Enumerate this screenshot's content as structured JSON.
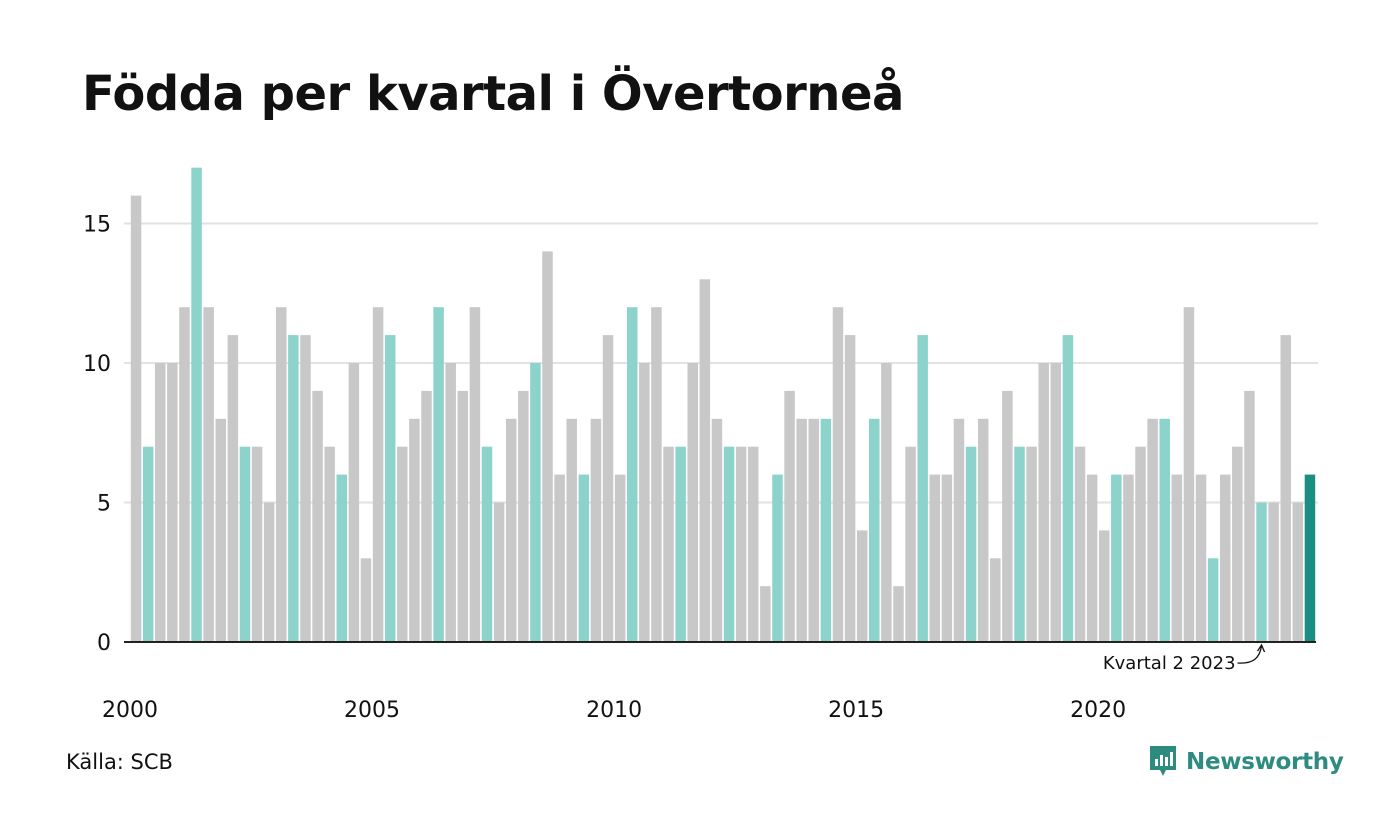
{
  "title": "Födda per kvartal i Övertorneå",
  "source": "Källa: SCB",
  "brand": {
    "name": "Newsworthy",
    "icon": "bar-chart-speech-bubble-icon"
  },
  "colors": {
    "bar_default": "#c8c8c8",
    "bar_same_quarter": "#8cd3cc",
    "bar_latest": "#1a8f81",
    "grid": "#e2e2e2",
    "axis": "#222222",
    "brand": "#2d8c7f"
  },
  "chart_data": {
    "type": "bar",
    "title": "Födda per kvartal i Övertorneå",
    "xlabel": "",
    "ylabel": "",
    "ylim": [
      0,
      17
    ],
    "yticks": [
      0,
      5,
      10,
      15
    ],
    "xtick_labels": [
      "2000",
      "2005",
      "2010",
      "2015",
      "2020"
    ],
    "grid": true,
    "highlight": "Kvartal 2 of each year highlighted; latest quarter emphasized",
    "annotation": {
      "text": "Kvartal 2 2023",
      "target_index": 93
    },
    "categories": [
      "2000 K1",
      "2000 K2",
      "2000 K3",
      "2000 K4",
      "2001 K1",
      "2001 K2",
      "2001 K3",
      "2001 K4",
      "2002 K1",
      "2002 K2",
      "2002 K3",
      "2002 K4",
      "2003 K1",
      "2003 K2",
      "2003 K3",
      "2003 K4",
      "2004 K1",
      "2004 K2",
      "2004 K3",
      "2004 K4",
      "2005 K1",
      "2005 K2",
      "2005 K3",
      "2005 K4",
      "2006 K1",
      "2006 K2",
      "2006 K3",
      "2006 K4",
      "2007 K1",
      "2007 K2",
      "2007 K3",
      "2007 K4",
      "2008 K1",
      "2008 K2",
      "2008 K3",
      "2008 K4",
      "2009 K1",
      "2009 K2",
      "2009 K3",
      "2009 K4",
      "2010 K1",
      "2010 K2",
      "2010 K3",
      "2010 K4",
      "2011 K1",
      "2011 K2",
      "2011 K3",
      "2011 K4",
      "2012 K1",
      "2012 K2",
      "2012 K3",
      "2012 K4",
      "2013 K1",
      "2013 K2",
      "2013 K3",
      "2013 K4",
      "2014 K1",
      "2014 K2",
      "2014 K3",
      "2014 K4",
      "2015 K1",
      "2015 K2",
      "2015 K3",
      "2015 K4",
      "2016 K1",
      "2016 K2",
      "2016 K3",
      "2016 K4",
      "2017 K1",
      "2017 K2",
      "2017 K3",
      "2017 K4",
      "2018 K1",
      "2018 K2",
      "2018 K3",
      "2018 K4",
      "2019 K1",
      "2019 K2",
      "2019 K3",
      "2019 K4",
      "2020 K1",
      "2020 K2",
      "2020 K3",
      "2020 K4",
      "2021 K1",
      "2021 K2",
      "2021 K3",
      "2021 K4",
      "2022 K1",
      "2022 K2",
      "2022 K3",
      "2022 K4",
      "2023 K1",
      "2023 K2",
      "2023 K3",
      "2023 K4",
      "2024 K1",
      "2024 K2"
    ],
    "values": [
      16,
      7,
      10,
      10,
      12,
      17,
      12,
      8,
      11,
      7,
      7,
      5,
      12,
      11,
      11,
      9,
      7,
      6,
      10,
      3,
      12,
      11,
      7,
      8,
      9,
      12,
      10,
      9,
      12,
      7,
      5,
      8,
      9,
      10,
      14,
      6,
      8,
      6,
      8,
      11,
      6,
      12,
      10,
      12,
      7,
      7,
      10,
      13,
      8,
      7,
      7,
      7,
      2,
      6,
      9,
      8,
      8,
      8,
      12,
      11,
      4,
      8,
      10,
      2,
      7,
      11,
      6,
      6,
      8,
      7,
      8,
      3,
      9,
      7,
      7,
      10,
      10,
      11,
      7,
      6,
      4,
      6,
      6,
      7,
      8,
      8,
      6,
      12,
      6,
      3,
      6,
      7,
      9,
      5,
      5,
      11,
      5,
      6
    ]
  }
}
